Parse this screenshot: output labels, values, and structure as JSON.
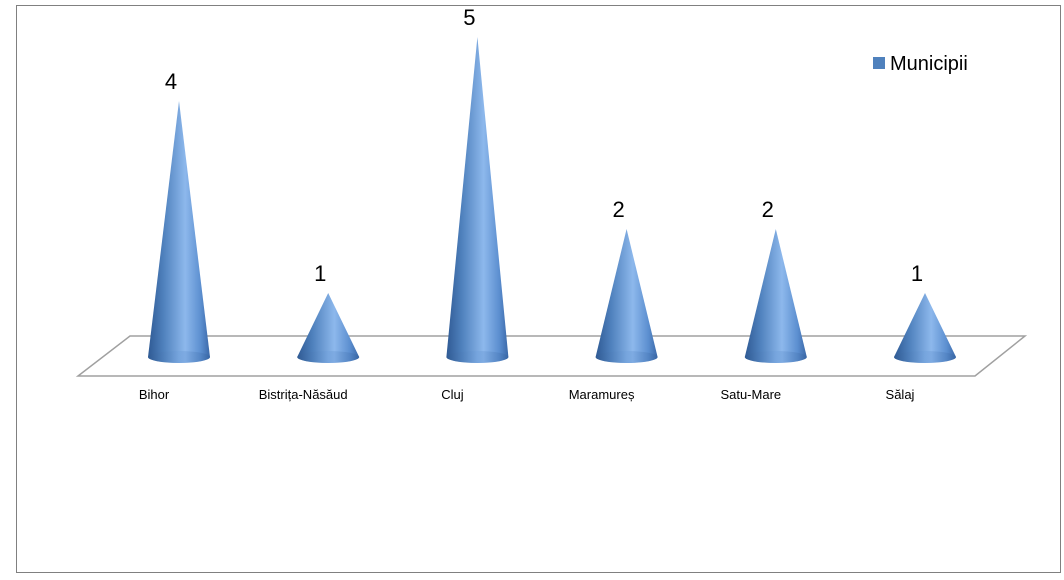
{
  "chart_data": {
    "type": "bar",
    "style": "3d-cone",
    "categories": [
      "Bihor",
      "Bistrița-Năsăud",
      "Cluj",
      "Maramureș",
      "Satu-Mare",
      "Sălaj"
    ],
    "series": [
      {
        "name": "Municipii",
        "values": [
          4,
          1,
          5,
          2,
          2,
          1
        ],
        "color": "#4F81BD"
      }
    ],
    "title": "",
    "xlabel": "",
    "ylabel": "",
    "ylim": [
      0,
      5
    ],
    "grid": false,
    "legend": "top-right",
    "data_labels": true
  }
}
